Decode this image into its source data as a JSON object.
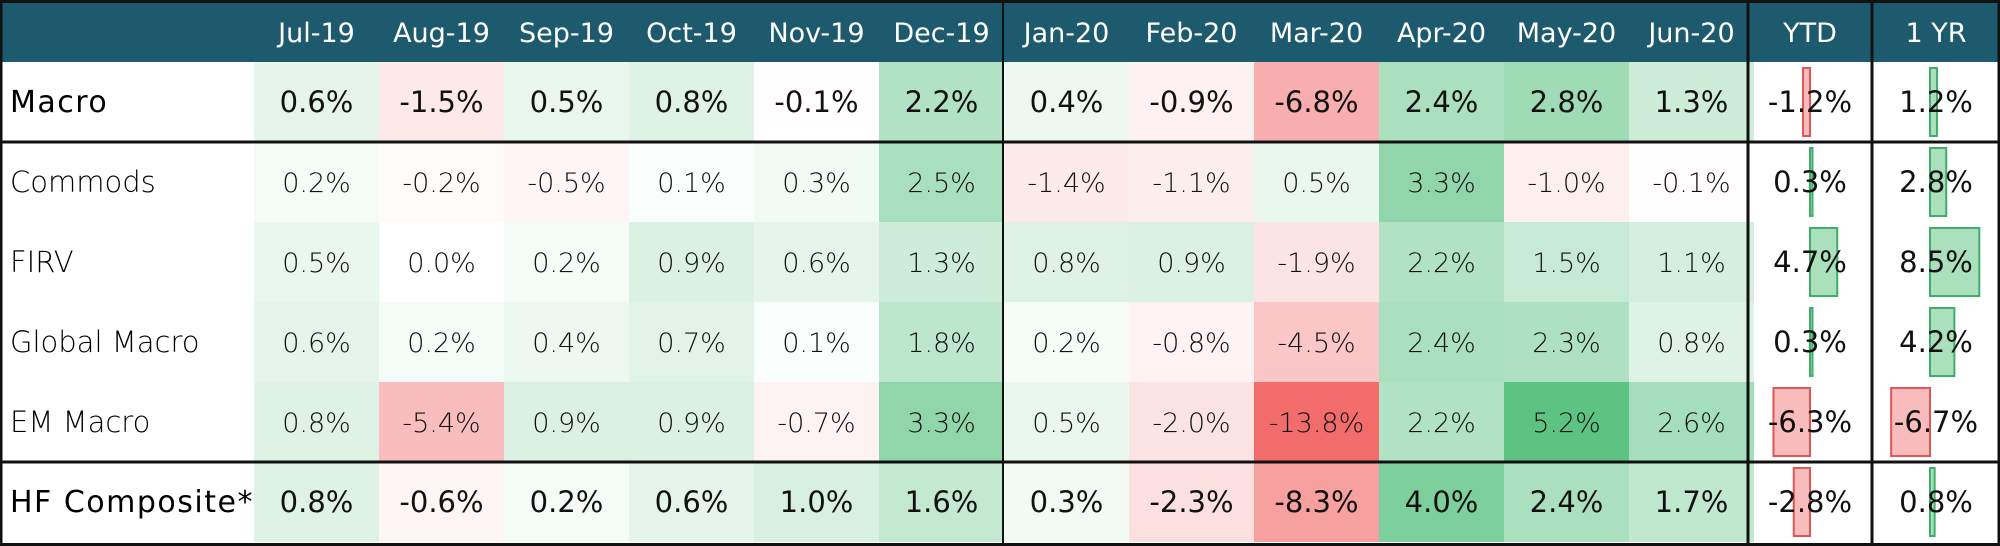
{
  "chart_data": {
    "type": "table",
    "columns": [
      "Jul-19",
      "Aug-19",
      "Sep-19",
      "Oct-19",
      "Nov-19",
      "Dec-19",
      "Jan-20",
      "Feb-20",
      "Mar-20",
      "Apr-20",
      "May-20",
      "Jun-20",
      "YTD",
      "1 YR"
    ],
    "rows": [
      {
        "label": "Macro",
        "values": [
          0.6,
          -1.5,
          0.5,
          0.8,
          -0.1,
          2.2,
          0.4,
          -0.9,
          -6.8,
          2.4,
          2.8,
          1.3
        ],
        "ytd": -1.2,
        "yr": 1.2,
        "display": [
          "0.6%",
          "-1.5%",
          "0.5%",
          "0.8%",
          "-0.1%",
          "2.2%",
          "0.4%",
          "-0.9%",
          "-6.8%",
          "2.4%",
          "2.8%",
          "1.3%"
        ],
        "ytd_display": "-1.2%",
        "yr_display": "1.2%"
      },
      {
        "label": "Commods",
        "values": [
          0.2,
          -0.2,
          -0.5,
          0.1,
          0.3,
          2.5,
          -1.4,
          -1.1,
          0.5,
          3.3,
          -1.0,
          -0.1
        ],
        "ytd": 0.3,
        "yr": 2.8,
        "display": [
          "0.2%",
          "-0.2%",
          "-0.5%",
          "0.1%",
          "0.3%",
          "2.5%",
          "-1.4%",
          "-1.1%",
          "0.5%",
          "3.3%",
          "-1.0%",
          "-0.1%"
        ],
        "ytd_display": "0.3%",
        "yr_display": "2.8%"
      },
      {
        "label": "FIRV",
        "values": [
          0.5,
          0.0,
          0.2,
          0.9,
          0.6,
          1.3,
          0.8,
          0.9,
          -1.9,
          2.2,
          1.5,
          1.1
        ],
        "ytd": 4.7,
        "yr": 8.5,
        "display": [
          "0.5%",
          "0.0%",
          "0.2%",
          "0.9%",
          "0.6%",
          "1.3%",
          "0.8%",
          "0.9%",
          "-1.9%",
          "2.2%",
          "1.5%",
          "1.1%"
        ],
        "ytd_display": "4.7%",
        "yr_display": "8.5%"
      },
      {
        "label": "Global Macro",
        "values": [
          0.6,
          0.2,
          0.4,
          0.7,
          0.1,
          1.8,
          0.2,
          -0.8,
          -4.5,
          2.4,
          2.3,
          0.8
        ],
        "ytd": 0.3,
        "yr": 4.2,
        "display": [
          "0.6%",
          "0.2%",
          "0.4%",
          "0.7%",
          "0.1%",
          "1.8%",
          "0.2%",
          "-0.8%",
          "-4.5%",
          "2.4%",
          "2.3%",
          "0.8%"
        ],
        "ytd_display": "0.3%",
        "yr_display": "4.2%"
      },
      {
        "label": "EM Macro",
        "values": [
          0.8,
          -5.4,
          0.9,
          0.9,
          -0.7,
          3.3,
          0.5,
          -2.0,
          -13.8,
          2.2,
          5.2,
          2.6
        ],
        "ytd": -6.3,
        "yr": -6.7,
        "display": [
          "0.8%",
          "-5.4%",
          "0.9%",
          "0.9%",
          "-0.7%",
          "3.3%",
          "0.5%",
          "-2.0%",
          "-13.8%",
          "2.2%",
          "5.2%",
          "2.6%"
        ],
        "ytd_display": "-6.3%",
        "yr_display": "-6.7%"
      },
      {
        "label": "HF Composite*",
        "values": [
          0.8,
          -0.6,
          0.2,
          0.6,
          1.0,
          1.6,
          0.3,
          -2.3,
          -8.3,
          4.0,
          2.4,
          1.7
        ],
        "ytd": -2.8,
        "yr": 0.8,
        "display": [
          "0.8%",
          "-0.6%",
          "0.2%",
          "0.6%",
          "1.0%",
          "1.6%",
          "0.3%",
          "-2.3%",
          "-8.3%",
          "4.0%",
          "2.4%",
          "1.7%"
        ],
        "ytd_display": "-2.8%",
        "yr_display": "0.8%"
      }
    ],
    "emphasized_rows": [
      "Macro",
      "HF Composite*"
    ],
    "colors": {
      "header_bg": "#1e5a6e",
      "positive": "#5dc383",
      "negative": "#f26c6c",
      "border": "#111111"
    }
  }
}
